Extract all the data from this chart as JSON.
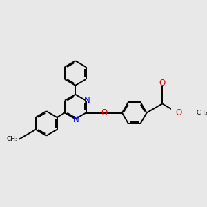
{
  "bg": "#e8e8e8",
  "bond_color": "#000000",
  "N_color": "#0000ee",
  "O_color": "#dd0000",
  "lw": 1.4,
  "dbo": 0.06,
  "figsize": [
    3.0,
    3.0
  ],
  "dpi": 100,
  "xlim": [
    -3.5,
    4.5
  ],
  "ylim": [
    -3.2,
    3.5
  ]
}
